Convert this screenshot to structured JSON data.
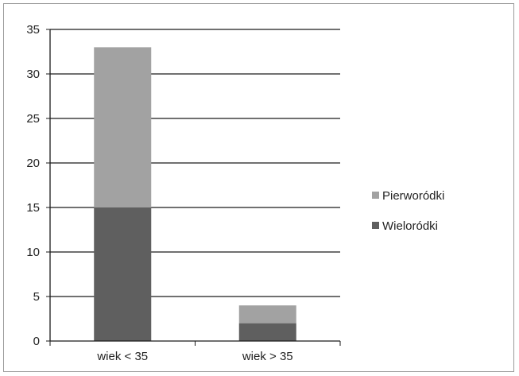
{
  "chart_data": {
    "type": "bar",
    "stacked": true,
    "categories": [
      "wiek < 35",
      "wiek > 35"
    ],
    "series": [
      {
        "name": "Wieloródki",
        "values": [
          15,
          2
        ],
        "color": "#5f5f5f"
      },
      {
        "name": "Pierworódki",
        "values": [
          18,
          2
        ],
        "color": "#a2a2a2"
      }
    ],
    "ylim": [
      0,
      35
    ],
    "yticks": [
      0,
      5,
      10,
      15,
      20,
      25,
      30,
      35
    ],
    "grid": true,
    "legend_position": "right",
    "legend_order": [
      "Pierworódki",
      "Wieloródki"
    ]
  }
}
